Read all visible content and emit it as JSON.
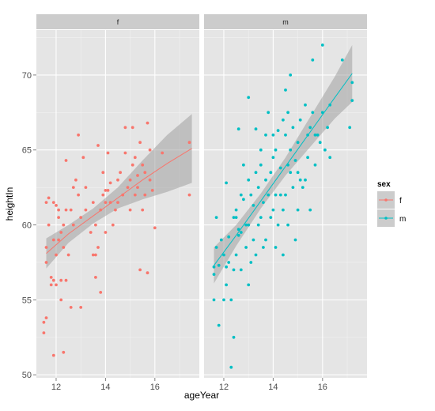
{
  "chart_data": {
    "type": "scatter",
    "title": "",
    "xlabel": "ageYear",
    "ylabel": "heightIn",
    "xlim": [
      11.2,
      17.8
    ],
    "ylim": [
      49.8,
      73.0
    ],
    "x_ticks": [
      12,
      14,
      16
    ],
    "y_ticks": [
      50,
      55,
      60,
      65,
      70
    ],
    "grid": true,
    "legend": {
      "title": "sex",
      "position": "right",
      "entries": [
        "f",
        "m"
      ]
    },
    "colors": {
      "f": "#F8766D",
      "m": "#00BFC4",
      "panel_bg": "#E5E5E5",
      "strip_bg": "#CCCCCC",
      "ribbon": "#999999"
    },
    "panels": [
      {
        "label": "f",
        "series": "f",
        "fit": {
          "x": [
            11.6,
            12.5,
            13.5,
            14.5,
            15.5,
            16.5,
            17.5
          ],
          "y": [
            58.1,
            59.4,
            60.6,
            61.8,
            63.0,
            64.1,
            65.1
          ],
          "lower": [
            57.1,
            58.8,
            60.1,
            61.1,
            61.7,
            62.2,
            62.8
          ],
          "upper": [
            59.1,
            60.0,
            61.1,
            62.5,
            64.3,
            66.0,
            67.4
          ]
        },
        "points": [
          [
            11.5,
            52.8
          ],
          [
            11.5,
            53.5
          ],
          [
            11.6,
            53.8
          ],
          [
            11.6,
            57.5
          ],
          [
            11.6,
            58.5
          ],
          [
            11.6,
            61.5
          ],
          [
            11.7,
            61.8
          ],
          [
            11.7,
            60.0
          ],
          [
            11.8,
            56.0
          ],
          [
            11.8,
            56.5
          ],
          [
            11.9,
            56.3
          ],
          [
            11.9,
            51.3
          ],
          [
            11.9,
            59.0
          ],
          [
            11.9,
            61.5
          ],
          [
            12.0,
            61.3
          ],
          [
            12.0,
            56.0
          ],
          [
            12.0,
            58.0
          ],
          [
            12.1,
            59.0
          ],
          [
            12.1,
            60.5
          ],
          [
            12.1,
            61.0
          ],
          [
            12.2,
            55.0
          ],
          [
            12.2,
            59.5
          ],
          [
            12.2,
            56.3
          ],
          [
            12.3,
            51.5
          ],
          [
            12.3,
            58.5
          ],
          [
            12.3,
            60.0
          ],
          [
            12.4,
            56.3
          ],
          [
            12.4,
            61.0
          ],
          [
            12.4,
            64.3
          ],
          [
            12.5,
            58.0
          ],
          [
            12.6,
            54.5
          ],
          [
            12.6,
            61.0
          ],
          [
            12.7,
            62.5
          ],
          [
            12.7,
            60.0
          ],
          [
            12.8,
            63.0
          ],
          [
            12.9,
            62.0
          ],
          [
            12.9,
            66.0
          ],
          [
            13.0,
            60.5
          ],
          [
            13.0,
            54.5
          ],
          [
            13.1,
            64.5
          ],
          [
            13.2,
            62.5
          ],
          [
            13.2,
            61.0
          ],
          [
            13.4,
            59.5
          ],
          [
            13.5,
            58.0
          ],
          [
            13.5,
            61.5
          ],
          [
            13.6,
            56.5
          ],
          [
            13.6,
            58.0
          ],
          [
            13.6,
            60.0
          ],
          [
            13.7,
            58.5
          ],
          [
            13.7,
            65.3
          ],
          [
            13.8,
            55.5
          ],
          [
            13.8,
            61.0
          ],
          [
            13.9,
            62.0
          ],
          [
            13.9,
            63.5
          ],
          [
            14.0,
            62.3
          ],
          [
            14.0,
            59.5
          ],
          [
            14.0,
            61.5
          ],
          [
            14.1,
            62.3
          ],
          [
            14.1,
            64.8
          ],
          [
            14.2,
            61.5
          ],
          [
            14.2,
            62.8
          ],
          [
            14.3,
            60.0
          ],
          [
            14.4,
            61.0
          ],
          [
            14.5,
            63.0
          ],
          [
            14.5,
            61.5
          ],
          [
            14.6,
            63.5
          ],
          [
            14.7,
            62.0
          ],
          [
            14.8,
            66.5
          ],
          [
            14.8,
            64.8
          ],
          [
            14.9,
            62.5
          ],
          [
            15.0,
            61.0
          ],
          [
            15.0,
            63.0
          ],
          [
            15.1,
            64.0
          ],
          [
            15.1,
            66.5
          ],
          [
            15.2,
            62.0
          ],
          [
            15.2,
            64.5
          ],
          [
            15.3,
            63.3
          ],
          [
            15.3,
            62.5
          ],
          [
            15.4,
            57.0
          ],
          [
            15.4,
            65.5
          ],
          [
            15.5,
            61.0
          ],
          [
            15.5,
            64.0
          ],
          [
            15.6,
            62.0
          ],
          [
            15.6,
            63.5
          ],
          [
            15.7,
            56.8
          ],
          [
            15.7,
            66.8
          ],
          [
            15.8,
            65.0
          ],
          [
            15.8,
            63.0
          ],
          [
            15.9,
            62.3
          ],
          [
            16.0,
            59.8
          ],
          [
            16.3,
            64.8
          ],
          [
            17.4,
            65.5
          ],
          [
            17.4,
            62.0
          ]
        ]
      },
      {
        "label": "m",
        "series": "m",
        "fit": {
          "x": [
            11.6,
            12.5,
            13.5,
            14.5,
            15.5,
            16.5,
            17.2
          ],
          "y": [
            57.3,
            59.3,
            61.6,
            63.9,
            66.2,
            68.5,
            70.1
          ],
          "lower": [
            56.1,
            58.6,
            61.1,
            63.3,
            65.2,
            67.1,
            68.2
          ],
          "upper": [
            58.5,
            60.0,
            62.1,
            64.5,
            67.2,
            69.9,
            72.0
          ]
        },
        "points": [
          [
            11.6,
            55.0
          ],
          [
            11.6,
            56.7
          ],
          [
            11.6,
            57.2
          ],
          [
            11.7,
            60.5
          ],
          [
            11.7,
            58.5
          ],
          [
            11.8,
            53.3
          ],
          [
            11.8,
            57.3
          ],
          [
            11.9,
            59.0
          ],
          [
            12.0,
            55.0
          ],
          [
            12.0,
            58.0
          ],
          [
            12.1,
            56.0
          ],
          [
            12.1,
            62.8
          ],
          [
            12.1,
            57.2
          ],
          [
            12.2,
            59.2
          ],
          [
            12.2,
            57.5
          ],
          [
            12.3,
            55.0
          ],
          [
            12.3,
            50.5
          ],
          [
            12.4,
            57.0
          ],
          [
            12.4,
            60.5
          ],
          [
            12.4,
            52.5
          ],
          [
            12.5,
            60.5
          ],
          [
            12.5,
            61.0
          ],
          [
            12.5,
            58.0
          ],
          [
            12.6,
            59.3
          ],
          [
            12.6,
            59.7
          ],
          [
            12.6,
            66.4
          ],
          [
            12.7,
            57.0
          ],
          [
            12.7,
            59.5
          ],
          [
            12.7,
            62.0
          ],
          [
            12.8,
            64.0
          ],
          [
            12.8,
            61.7
          ],
          [
            12.9,
            60.0
          ],
          [
            12.9,
            58.5
          ],
          [
            13.0,
            68.5
          ],
          [
            13.0,
            63.0
          ],
          [
            13.0,
            56.0
          ],
          [
            13.0,
            60.0
          ],
          [
            13.1,
            57.5
          ],
          [
            13.1,
            62.0
          ],
          [
            13.2,
            59.0
          ],
          [
            13.2,
            61.3
          ],
          [
            13.3,
            63.5
          ],
          [
            13.3,
            58.0
          ],
          [
            13.3,
            66.4
          ],
          [
            13.4,
            60.0
          ],
          [
            13.4,
            62.5
          ],
          [
            13.5,
            65.0
          ],
          [
            13.5,
            60.5
          ],
          [
            13.5,
            64.0
          ],
          [
            13.6,
            61.5
          ],
          [
            13.6,
            58.5
          ],
          [
            13.7,
            59.0
          ],
          [
            13.7,
            63.0
          ],
          [
            13.7,
            66.0
          ],
          [
            13.8,
            62.0
          ],
          [
            13.8,
            67.5
          ],
          [
            13.9,
            60.5
          ],
          [
            13.9,
            63.5
          ],
          [
            14.0,
            61.0
          ],
          [
            14.0,
            64.5
          ],
          [
            14.0,
            66.0
          ],
          [
            14.1,
            62.0
          ],
          [
            14.1,
            65.0
          ],
          [
            14.1,
            58.5
          ],
          [
            14.2,
            60.0
          ],
          [
            14.2,
            66.3
          ],
          [
            14.3,
            62.0
          ],
          [
            14.3,
            63.8
          ],
          [
            14.4,
            61.0
          ],
          [
            14.4,
            67.0
          ],
          [
            14.4,
            58.0
          ],
          [
            14.5,
            66.0
          ],
          [
            14.5,
            69.0
          ],
          [
            14.5,
            62.0
          ],
          [
            14.6,
            60.0
          ],
          [
            14.6,
            64.0
          ],
          [
            14.6,
            67.5
          ],
          [
            14.7,
            63.5
          ],
          [
            14.7,
            65.0
          ],
          [
            14.7,
            70.0
          ],
          [
            14.8,
            62.5
          ],
          [
            14.8,
            66.5
          ],
          [
            14.9,
            59.0
          ],
          [
            14.9,
            64.3
          ],
          [
            15.0,
            61.0
          ],
          [
            15.0,
            63.5
          ],
          [
            15.0,
            65.5
          ],
          [
            15.1,
            67.0
          ],
          [
            15.1,
            63.0
          ],
          [
            15.2,
            62.5
          ],
          [
            15.3,
            68.0
          ],
          [
            15.3,
            63.0
          ],
          [
            15.4,
            66.0
          ],
          [
            15.4,
            64.5
          ],
          [
            15.5,
            66.5
          ],
          [
            15.5,
            61.0
          ],
          [
            15.6,
            67.5
          ],
          [
            15.6,
            71.0
          ],
          [
            15.7,
            66.0
          ],
          [
            15.7,
            64.0
          ],
          [
            15.8,
            66.0
          ],
          [
            15.9,
            65.5
          ],
          [
            16.0,
            67.5
          ],
          [
            16.0,
            72.0
          ],
          [
            16.1,
            65.0
          ],
          [
            16.2,
            66.5
          ],
          [
            16.3,
            68.0
          ],
          [
            16.3,
            64.5
          ],
          [
            16.8,
            71.0
          ],
          [
            17.1,
            66.5
          ],
          [
            17.2,
            69.5
          ],
          [
            17.2,
            68.3
          ]
        ]
      }
    ]
  }
}
